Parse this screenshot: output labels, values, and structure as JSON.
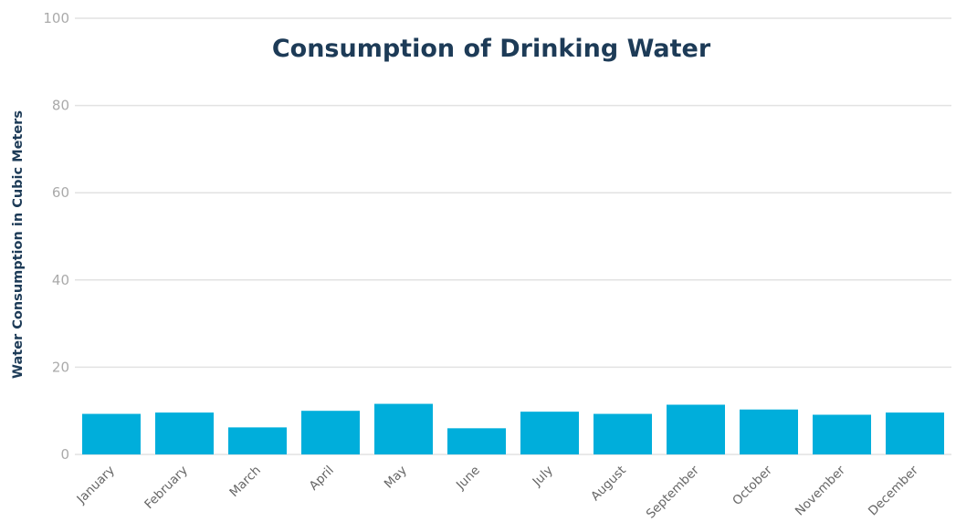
{
  "chart_data": {
    "type": "bar",
    "title": "Consumption of Drinking Water",
    "xlabel": "",
    "ylabel": "Water Consumption in Cubic Meters",
    "categories": [
      "January",
      "February",
      "March",
      "April",
      "May",
      "June",
      "July",
      "August",
      "September",
      "October",
      "November",
      "December"
    ],
    "values": [
      9.3,
      9.6,
      6.2,
      10.0,
      11.6,
      6.0,
      9.8,
      9.3,
      11.4,
      10.3,
      9.1,
      9.6
    ],
    "ylim": [
      0,
      100
    ],
    "yticks": [
      "0",
      "20",
      "40",
      "60",
      "80",
      "100"
    ],
    "grid": true,
    "legend": "none",
    "colors": {
      "bar": "#00aedb",
      "title": "#1d3b57",
      "grid": "#e2e2e2"
    }
  }
}
